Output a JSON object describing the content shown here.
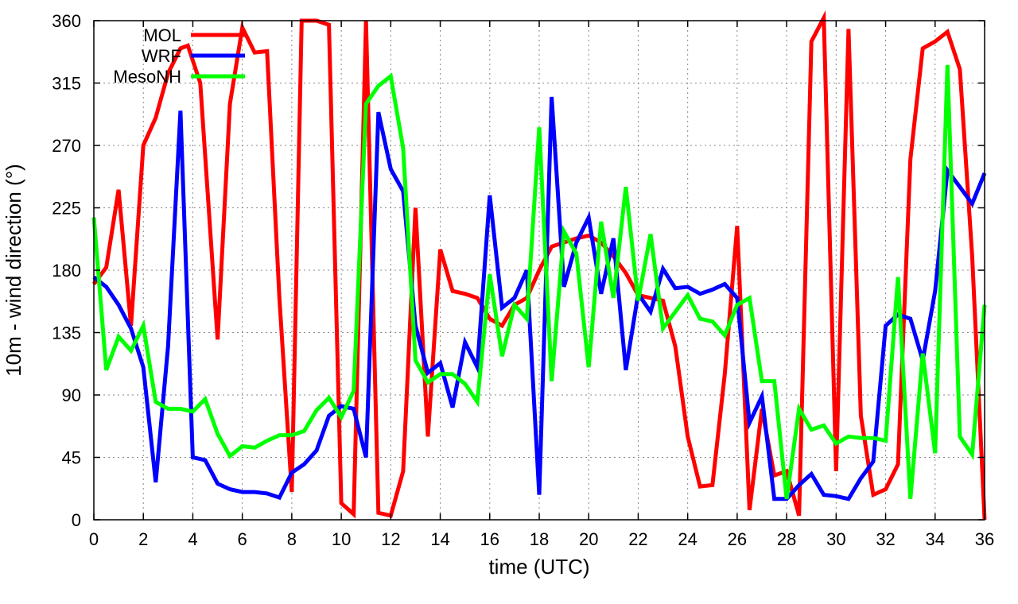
{
  "chart_data": {
    "type": "line",
    "title": "",
    "xlabel": "time (UTC)",
    "ylabel": "10m - wind direction (°)",
    "xlim": [
      0,
      36
    ],
    "ylim": [
      0,
      360
    ],
    "xticks": [
      0,
      2,
      4,
      6,
      8,
      10,
      12,
      14,
      16,
      18,
      20,
      22,
      24,
      26,
      28,
      30,
      32,
      34,
      36
    ],
    "yticks": [
      0,
      45,
      90,
      135,
      180,
      225,
      270,
      315,
      360
    ],
    "grid": true,
    "legend_position": "top-left",
    "series": [
      {
        "name": "MOL",
        "color": "#ff0000",
        "x": [
          0,
          0.5,
          1,
          1.5,
          2,
          2.5,
          3,
          3.5,
          3.8,
          4.3,
          5,
          5.5,
          6,
          6.5,
          7,
          7.5,
          8,
          8.4,
          9,
          9.5,
          10,
          10.5,
          11,
          11.5,
          12,
          12.5,
          13,
          13.5,
          14,
          14.5,
          15,
          15.5,
          16,
          16.5,
          17,
          17.5,
          18,
          18.5,
          19,
          19.5,
          20,
          20.5,
          21,
          21.5,
          22,
          22.5,
          23,
          23.5,
          24,
          24.5,
          25,
          25.5,
          26,
          26.5,
          27,
          27.5,
          28,
          28.5,
          29,
          29.5,
          30,
          30.5,
          31,
          31.5,
          32,
          32.5,
          33,
          33.5,
          34,
          34.5,
          35,
          35.5,
          36
        ],
        "values": [
          170,
          182,
          238,
          140,
          270,
          290,
          322,
          340,
          342,
          315,
          130,
          300,
          355,
          337,
          338,
          160,
          20,
          360,
          360,
          357,
          12,
          4,
          360,
          5,
          3,
          35,
          225,
          60,
          195,
          165,
          163,
          160,
          145,
          140,
          155,
          160,
          180,
          197,
          200,
          203,
          205,
          200,
          190,
          178,
          162,
          160,
          158,
          125,
          60,
          24,
          25,
          105,
          212,
          7,
          80,
          32,
          35,
          3,
          345,
          362,
          35,
          354,
          75,
          18,
          22,
          40,
          260,
          340,
          345,
          352,
          325,
          190,
          0
        ]
      },
      {
        "name": "WRF",
        "color": "#0000ff",
        "x": [
          0,
          0.5,
          1,
          1.5,
          2,
          2.5,
          3,
          3.5,
          4,
          4.5,
          5,
          5.5,
          6,
          6.5,
          7,
          7.5,
          8,
          8.5,
          9,
          9.5,
          10,
          10.5,
          11,
          11.5,
          12,
          12.5,
          13,
          13.5,
          14,
          14.5,
          15,
          15.5,
          16,
          16.5,
          17,
          17.5,
          18,
          18.5,
          19,
          19.5,
          20,
          20.5,
          21,
          21.5,
          22,
          22.5,
          23,
          23.5,
          24,
          24.5,
          25,
          25.5,
          26,
          26.5,
          27,
          27.5,
          28,
          28.5,
          29,
          29.5,
          30,
          30.5,
          31,
          31.5,
          32,
          32.5,
          33,
          33.5,
          34,
          34.5,
          35,
          35.5,
          36
        ],
        "values": [
          175,
          168,
          155,
          138,
          110,
          27,
          125,
          295,
          45,
          43,
          26,
          22,
          20,
          20,
          19,
          16,
          34,
          40,
          50,
          75,
          82,
          80,
          45,
          294,
          253,
          237,
          140,
          106,
          113,
          81,
          128,
          110,
          234,
          153,
          160,
          180,
          18,
          305,
          168,
          200,
          218,
          163,
          203,
          108,
          163,
          150,
          181,
          167,
          168,
          163,
          166,
          170,
          160,
          70,
          89,
          15,
          15,
          25,
          33,
          18,
          17,
          15,
          30,
          42,
          140,
          148,
          145,
          115,
          165,
          252,
          240,
          228,
          250
        ]
      },
      {
        "name": "MesoNH",
        "color": "#00ff00",
        "x": [
          0,
          0.5,
          1,
          1.5,
          2,
          2.5,
          3,
          3.5,
          4,
          4.5,
          5,
          5.5,
          6,
          6.5,
          7,
          7.5,
          8,
          8.5,
          9,
          9.5,
          10,
          10.5,
          11,
          11.5,
          12,
          12.5,
          13,
          13.5,
          14,
          14.5,
          15,
          15.5,
          16,
          16.5,
          17,
          17.5,
          18,
          18.5,
          19,
          19.5,
          20,
          20.5,
          21,
          21.5,
          22,
          22.5,
          23,
          23.5,
          24,
          24.5,
          25,
          25.5,
          26,
          26.5,
          27,
          27.5,
          28,
          28.5,
          29,
          29.5,
          30,
          30.5,
          31,
          31.5,
          32,
          32.5,
          33,
          33.5,
          34,
          34.5,
          35,
          35.5,
          36
        ],
        "values": [
          218,
          108,
          132,
          122,
          140,
          85,
          80,
          80,
          78,
          87,
          62,
          46,
          53,
          52,
          57,
          61,
          61,
          64,
          79,
          88,
          74,
          93,
          300,
          313,
          320,
          268,
          115,
          99,
          105,
          105,
          98,
          85,
          177,
          118,
          155,
          145,
          283,
          100,
          208,
          192,
          110,
          215,
          160,
          240,
          158,
          206,
          138,
          150,
          162,
          145,
          143,
          133,
          155,
          160,
          100,
          100,
          15,
          80,
          65,
          68,
          55,
          60,
          59,
          59,
          57,
          175,
          15,
          120,
          48,
          328,
          60,
          47,
          155
        ]
      }
    ]
  }
}
